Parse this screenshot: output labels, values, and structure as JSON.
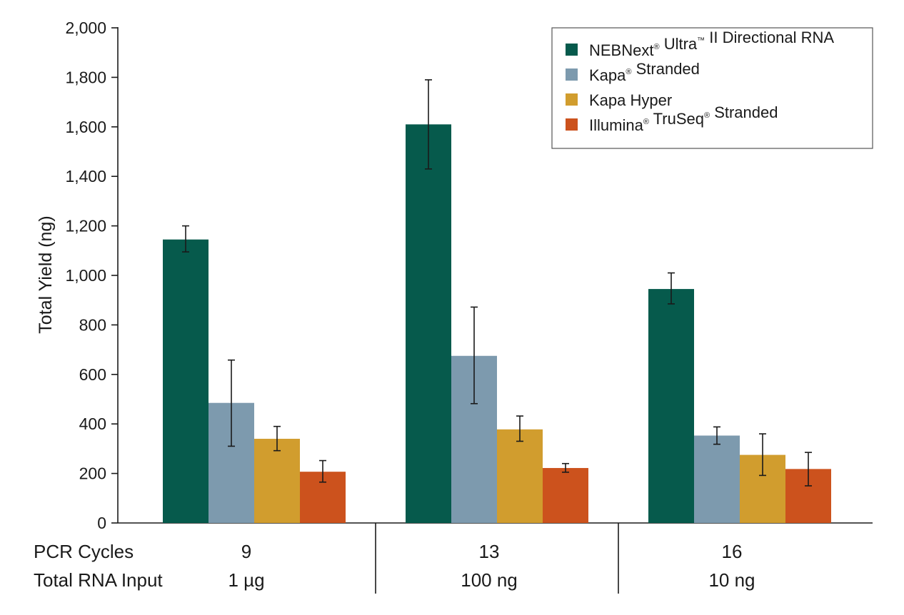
{
  "chart_data": {
    "type": "bar",
    "ylabel": "Total Yield (ng)",
    "ylim": [
      0,
      2000
    ],
    "yticks": [
      0,
      200,
      400,
      600,
      800,
      1000,
      1200,
      1400,
      1600,
      1800,
      2000
    ],
    "ytick_labels": [
      "0",
      "200",
      "400",
      "600",
      "800",
      "1,000",
      "1,200",
      "1,400",
      "1,600",
      "1,800",
      "2,000"
    ],
    "legend_position": "top-right",
    "row_labels": [
      "PCR Cycles",
      "Total RNA Input"
    ],
    "groups": [
      {
        "pcr_cycles": "9",
        "rna_input": "1 µg"
      },
      {
        "pcr_cycles": "13",
        "rna_input": "100 ng"
      },
      {
        "pcr_cycles": "16",
        "rna_input": "10 ng"
      }
    ],
    "series": [
      {
        "name": "NEBNext® Ultra™ II Directional RNA",
        "name_parts": [
          {
            "text": "NEBNext"
          },
          {
            "text": "®",
            "sup": true
          },
          {
            "text": " Ultra"
          },
          {
            "text": "™",
            "sup": true
          },
          {
            "text": " II Directional RNA"
          }
        ],
        "color": "#065a4c",
        "values": [
          1145,
          1610,
          945
        ],
        "errors": [
          [
            1095,
            1200
          ],
          [
            1430,
            1790
          ],
          [
            885,
            1010
          ]
        ]
      },
      {
        "name": "Kapa® Stranded",
        "name_parts": [
          {
            "text": "Kapa"
          },
          {
            "text": "®",
            "sup": true
          },
          {
            "text": " Stranded"
          }
        ],
        "color": "#7d9aae",
        "values": [
          485,
          675,
          353
        ],
        "errors": [
          [
            310,
            658
          ],
          [
            482,
            872
          ],
          [
            318,
            388
          ]
        ]
      },
      {
        "name": "Kapa Hyper",
        "name_parts": [
          {
            "text": "Kapa Hyper"
          }
        ],
        "color": "#d19d2e",
        "values": [
          340,
          378,
          275
        ],
        "errors": [
          [
            292,
            390
          ],
          [
            330,
            432
          ],
          [
            192,
            360
          ]
        ]
      },
      {
        "name": "Illumina® TruSeq® Stranded",
        "name_parts": [
          {
            "text": "Illumina"
          },
          {
            "text": "®",
            "sup": true
          },
          {
            "text": " TruSeq"
          },
          {
            "text": "®",
            "sup": true
          },
          {
            "text": " Stranded"
          }
        ],
        "color": "#cc521d",
        "values": [
          207,
          222,
          218
        ],
        "errors": [
          [
            165,
            252
          ],
          [
            205,
            240
          ],
          [
            150,
            285
          ]
        ]
      }
    ]
  }
}
